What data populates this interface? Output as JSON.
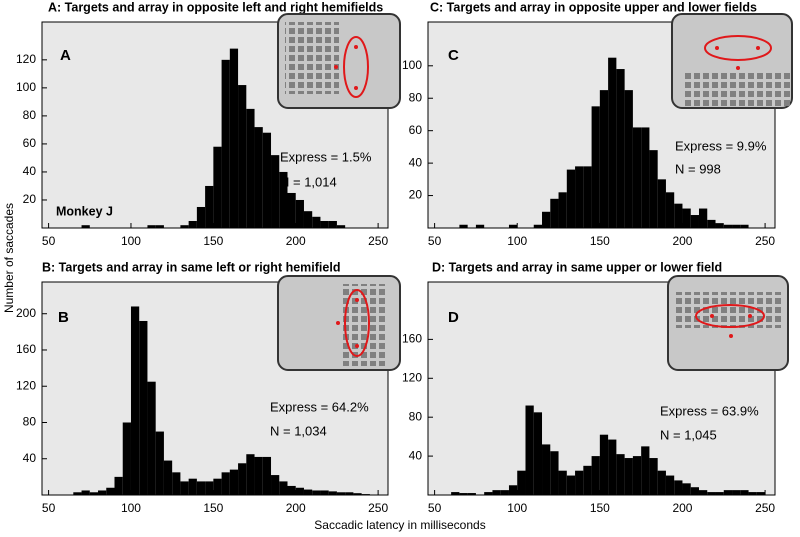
{
  "ylabel": "Number of saccades",
  "xlabel": "Saccadic latency in milliseconds",
  "chart_data": [
    {
      "type": "histogram",
      "title": "A:  Targets and array in opposite left and right hemifields",
      "panel": "A",
      "annotations": [
        "Express = 1.5%",
        "N = 1,014",
        "Monkey J"
      ],
      "color": "#000000",
      "bins": [
        50,
        55,
        60,
        65,
        70,
        75,
        80,
        85,
        90,
        95,
        100,
        105,
        110,
        115,
        120,
        125,
        130,
        135,
        140,
        145,
        150,
        155,
        160,
        165,
        170,
        175,
        180,
        185,
        190,
        195,
        200,
        205,
        210,
        215,
        220,
        225,
        230,
        235,
        240,
        245,
        250
      ],
      "values": [
        0,
        0,
        0,
        0,
        2,
        0,
        0,
        0,
        0,
        0,
        0,
        0,
        2,
        2,
        0,
        0,
        2,
        5,
        15,
        30,
        58,
        120,
        128,
        102,
        85,
        72,
        68,
        52,
        40,
        25,
        20,
        12,
        8,
        5,
        5,
        2,
        0,
        0,
        0,
        0
      ],
      "xlim": [
        46,
        256
      ],
      "xticks": [
        50,
        100,
        150,
        200,
        250
      ],
      "ylim": [
        0,
        147
      ],
      "yticks": [
        20,
        40,
        60,
        80,
        100,
        120
      ]
    },
    {
      "type": "histogram",
      "title": "B:  Targets and array in same left or right hemifield",
      "panel": "B",
      "annotations": [
        "Express = 64.2%",
        "N = 1,034"
      ],
      "color": "#000000",
      "bins": [
        50,
        55,
        60,
        65,
        70,
        75,
        80,
        85,
        90,
        95,
        100,
        105,
        110,
        115,
        120,
        125,
        130,
        135,
        140,
        145,
        150,
        155,
        160,
        165,
        170,
        175,
        180,
        185,
        190,
        195,
        200,
        205,
        210,
        215,
        220,
        225,
        230,
        235,
        240,
        245,
        250
      ],
      "values": [
        0,
        0,
        0,
        3,
        5,
        3,
        5,
        8,
        20,
        80,
        208,
        192,
        125,
        70,
        38,
        25,
        15,
        18,
        15,
        15,
        18,
        25,
        28,
        35,
        45,
        42,
        42,
        22,
        15,
        10,
        8,
        6,
        5,
        5,
        4,
        3,
        3,
        2,
        1,
        0
      ],
      "xlim": [
        46,
        256
      ],
      "xticks": [
        50,
        100,
        150,
        200,
        250
      ],
      "ylim": [
        0,
        235
      ],
      "yticks": [
        40,
        80,
        120,
        160,
        200
      ]
    },
    {
      "type": "histogram",
      "title": "C:  Targets and array in opposite upper and lower fields",
      "panel": "C",
      "annotations": [
        "Express = 9.9%",
        "N = 998"
      ],
      "color": "#000000",
      "bins": [
        50,
        55,
        60,
        65,
        70,
        75,
        80,
        85,
        90,
        95,
        100,
        105,
        110,
        115,
        120,
        125,
        130,
        135,
        140,
        145,
        150,
        155,
        160,
        165,
        170,
        175,
        180,
        185,
        190,
        195,
        200,
        205,
        210,
        215,
        220,
        225,
        230,
        235,
        240,
        245,
        250
      ],
      "values": [
        0,
        0,
        0,
        2,
        0,
        2,
        0,
        0,
        0,
        2,
        0,
        0,
        2,
        10,
        18,
        22,
        36,
        38,
        38,
        75,
        85,
        105,
        98,
        85,
        62,
        62,
        48,
        30,
        22,
        15,
        12,
        8,
        12,
        5,
        3,
        2,
        2,
        2,
        0,
        0
      ],
      "xlim": [
        46,
        256
      ],
      "xticks": [
        50,
        100,
        150,
        200,
        250
      ],
      "ylim": [
        0,
        127
      ],
      "yticks": [
        20,
        40,
        60,
        80,
        100
      ]
    },
    {
      "type": "histogram",
      "title": "D:  Targets and array in same upper or lower field",
      "panel": "D",
      "annotations": [
        "Express = 63.9%",
        "N = 1,045"
      ],
      "color": "#000000",
      "bins": [
        50,
        55,
        60,
        65,
        70,
        75,
        80,
        85,
        90,
        95,
        100,
        105,
        110,
        115,
        120,
        125,
        130,
        135,
        140,
        145,
        150,
        155,
        160,
        165,
        170,
        175,
        180,
        185,
        190,
        195,
        200,
        205,
        210,
        215,
        220,
        225,
        230,
        235,
        240,
        245,
        250
      ],
      "values": [
        0,
        0,
        3,
        2,
        2,
        0,
        3,
        5,
        5,
        10,
        25,
        92,
        85,
        52,
        45,
        25,
        20,
        25,
        30,
        40,
        62,
        57,
        42,
        38,
        40,
        50,
        38,
        25,
        20,
        15,
        12,
        8,
        5,
        3,
        3,
        5,
        5,
        5,
        3,
        3
      ],
      "xlim": [
        46,
        256
      ],
      "xticks": [
        50,
        100,
        150,
        200,
        250
      ],
      "ylim": [
        0,
        219
      ],
      "yticks": [
        40,
        80,
        120,
        160
      ]
    }
  ]
}
